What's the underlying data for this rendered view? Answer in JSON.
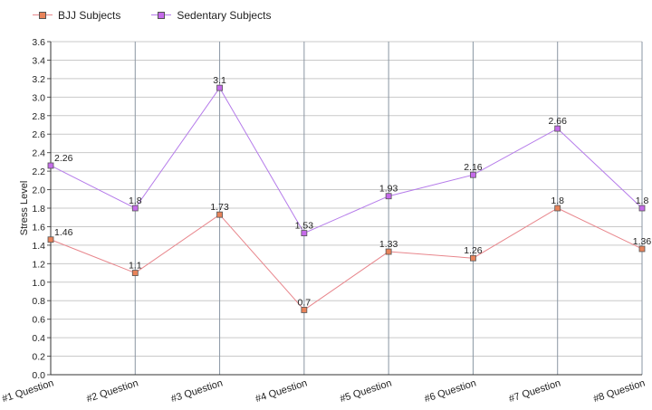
{
  "chart_data": {
    "type": "line",
    "categories": [
      "#1 Question",
      "#2 Question",
      "#3 Question",
      "#4 Question",
      "#5 Question",
      "#6 Question",
      "#7 Question",
      "#8 Question"
    ],
    "series": [
      {
        "name": "BJJ Subjects",
        "values": [
          1.46,
          1.1,
          1.73,
          0.7,
          1.33,
          1.26,
          1.8,
          1.36
        ],
        "labels": [
          "1.46",
          "1.1",
          "1.73",
          "0.7",
          "1.33",
          "1.26",
          "1.8",
          "1.36"
        ],
        "color": "#e8868c",
        "marker_color": "#e8835a"
      },
      {
        "name": "Sedentary Subjects",
        "values": [
          2.26,
          1.8,
          3.1,
          1.53,
          1.93,
          2.16,
          2.66,
          1.8
        ],
        "labels": [
          "2.26",
          "1.8",
          "3.1",
          "1.53",
          "1.93",
          "2.16",
          "2.66",
          "1.8"
        ],
        "color": "#b57bea",
        "marker_color": "#c56bea"
      }
    ],
    "ylabel": "Stress Level",
    "xlabel": "",
    "ylim": [
      0,
      3.6
    ],
    "ytick_step": 0.2,
    "ytick_labels": [
      "0.0",
      "0.2",
      "0.4",
      "0.6",
      "0.8",
      "1.0",
      "1.2",
      "1.4",
      "1.6",
      "1.8",
      "2.0",
      "2.2",
      "2.4",
      "2.6",
      "2.8",
      "3.0",
      "3.2",
      "3.4",
      "3.6"
    ],
    "grid": true,
    "legend_position": "top-left"
  }
}
